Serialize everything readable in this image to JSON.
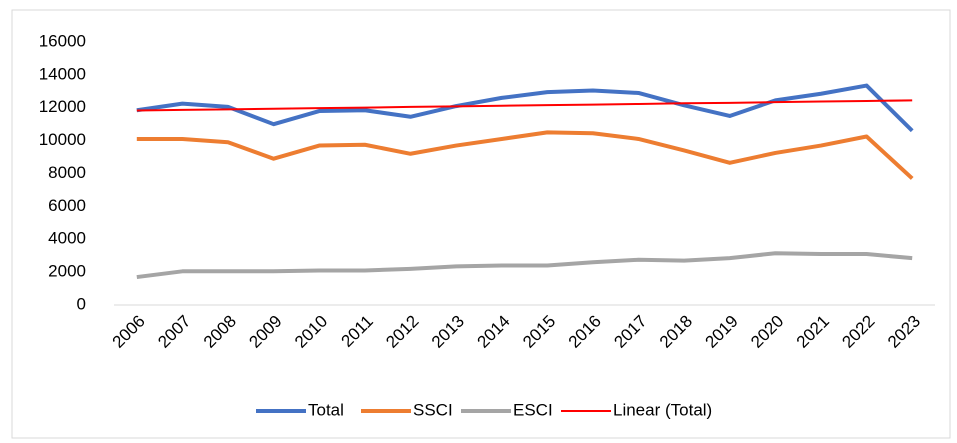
{
  "chart_data": {
    "type": "line",
    "categories": [
      "2006",
      "2007",
      "2008",
      "2009",
      "2010",
      "2011",
      "2012",
      "2013",
      "2014",
      "2015",
      "2016",
      "2017",
      "2018",
      "2019",
      "2020",
      "2021",
      "2022",
      "2023"
    ],
    "series": [
      {
        "name": "Total",
        "color": "#4472c4",
        "width": 4,
        "values": [
          11850,
          12250,
          12050,
          11000,
          11800,
          11850,
          11450,
          12100,
          12600,
          12950,
          13050,
          12900,
          12150,
          11500,
          12450,
          12850,
          13350,
          10600
        ]
      },
      {
        "name": "SSCI",
        "color": "#ed7d31",
        "width": 4,
        "values": [
          10100,
          10100,
          9900,
          8900,
          9700,
          9750,
          9200,
          9700,
          10100,
          10500,
          10450,
          10100,
          9400,
          8650,
          9250,
          9700,
          10250,
          7700
        ]
      },
      {
        "name": "ESCI",
        "color": "#a5a5a5",
        "width": 4,
        "values": [
          1700,
          2050,
          2050,
          2050,
          2100,
          2100,
          2200,
          2350,
          2400,
          2400,
          2600,
          2750,
          2700,
          2850,
          3150,
          3100,
          3100,
          2850
        ]
      },
      {
        "name": "Linear (Total)",
        "color": "#ff0000",
        "width": 2,
        "values": [
          11830,
          11870,
          11900,
          11940,
          11980,
          12010,
          12050,
          12080,
          12120,
          12160,
          12190,
          12230,
          12270,
          12300,
          12340,
          12380,
          12410,
          12450
        ]
      }
    ],
    "ylim": [
      0,
      16000
    ],
    "yticks": [
      0,
      2000,
      4000,
      6000,
      8000,
      10000,
      12000,
      14000,
      16000
    ],
    "grid": false,
    "legend": "bottom"
  }
}
